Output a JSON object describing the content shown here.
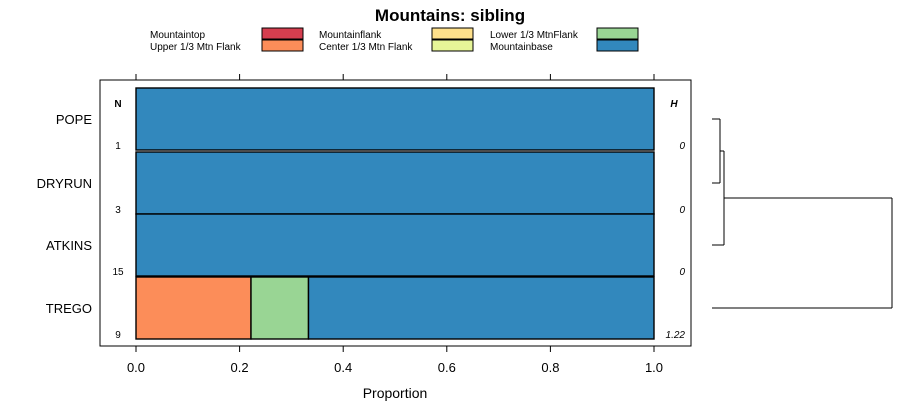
{
  "chart_data": {
    "type": "bar",
    "orientation": "horizontal",
    "stacked": true,
    "title": "Mountains: sibling",
    "xlabel": "Proportion",
    "ylabel": "",
    "xlim": [
      0,
      1
    ],
    "x_ticks": [
      "0.0",
      "0.2",
      "0.4",
      "0.6",
      "0.8",
      "1.0"
    ],
    "n_header": "N",
    "h_header": "H",
    "legend": [
      {
        "name": "Mountaintop",
        "color": "#d53e4f"
      },
      {
        "name": "Upper 1/3 Mtn Flank",
        "color": "#fc8d59"
      },
      {
        "name": "Mountainflank",
        "color": "#fee08b"
      },
      {
        "name": "Center 1/3 Mtn Flank",
        "color": "#e6f598"
      },
      {
        "name": "Lower 1/3 MtnFlank",
        "color": "#99d594"
      },
      {
        "name": "Mountainbase",
        "color": "#3288bd"
      }
    ],
    "categories": [
      "POPE",
      "DRYRUN",
      "ATKINS",
      "TREGO"
    ],
    "n_values": [
      "1",
      "3",
      "15",
      "9"
    ],
    "h_values": [
      "0",
      "0",
      "0",
      "1.22"
    ],
    "series": [
      {
        "name": "Mountaintop",
        "values": [
          0,
          0,
          0,
          0
        ]
      },
      {
        "name": "Upper 1/3 Mtn Flank",
        "values": [
          0,
          0,
          0,
          0.222
        ]
      },
      {
        "name": "Mountainflank",
        "values": [
          0,
          0,
          0,
          0
        ]
      },
      {
        "name": "Center 1/3 Mtn Flank",
        "values": [
          0,
          0,
          0,
          0
        ]
      },
      {
        "name": "Lower 1/3 MtnFlank",
        "values": [
          0,
          0,
          0,
          0.111
        ]
      },
      {
        "name": "Mountainbase",
        "values": [
          1,
          1,
          1,
          0.667
        ]
      }
    ],
    "dendrogram": {
      "merges": [
        {
          "left": "POPE",
          "right": "DRYRUN",
          "height": 0.02
        },
        {
          "left": "POPE+DRYRUN",
          "right": "ATKINS",
          "height": 0.03
        },
        {
          "left": "POPE+DRYRUN+ATKINS",
          "right": "TREGO",
          "height": 0.45
        }
      ]
    }
  }
}
